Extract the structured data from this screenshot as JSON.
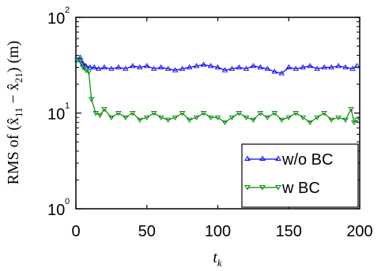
{
  "chart_data": {
    "type": "line",
    "title": "",
    "xlabel": "t_k",
    "ylabel": "RMS of (x̂_11 − x̂_21) (m)",
    "xlim": [
      0,
      200
    ],
    "ylim": [
      1,
      100
    ],
    "y_scale": "log",
    "xticks": [
      0,
      50,
      100,
      150,
      200
    ],
    "yticks": [
      {
        "value": 1,
        "base": "10",
        "exp": "0"
      },
      {
        "value": 10,
        "base": "10",
        "exp": "1"
      },
      {
        "value": 100,
        "base": "10",
        "exp": "2"
      }
    ],
    "grid": false,
    "legend_position": "bottom-right",
    "series": [
      {
        "name": "w/o BC",
        "color": "#0000ff",
        "marker": "triangle-up",
        "x": [
          1,
          3,
          5,
          7,
          10,
          13,
          16,
          20,
          25,
          30,
          35,
          40,
          45,
          50,
          55,
          60,
          65,
          70,
          75,
          80,
          85,
          90,
          95,
          100,
          105,
          110,
          115,
          120,
          125,
          130,
          135,
          140,
          145,
          150,
          155,
          160,
          165,
          170,
          175,
          180,
          185,
          190,
          195,
          198
        ],
        "values": [
          36,
          38,
          33,
          31,
          30,
          30,
          29,
          30,
          29,
          30,
          29,
          31,
          30,
          31,
          29,
          30,
          29,
          28,
          29,
          30,
          31,
          32,
          31,
          30,
          28,
          29,
          30,
          29,
          31,
          30,
          29,
          27,
          26,
          30,
          29,
          30,
          31,
          29,
          30,
          30,
          31,
          30,
          29,
          31
        ]
      },
      {
        "name": "w BC",
        "color": "#008800",
        "marker": "triangle-down",
        "x": [
          1,
          3,
          5,
          7,
          9,
          11,
          14,
          17,
          20,
          25,
          30,
          35,
          40,
          45,
          50,
          55,
          60,
          65,
          70,
          75,
          80,
          85,
          90,
          95,
          100,
          105,
          110,
          115,
          120,
          125,
          130,
          135,
          140,
          145,
          150,
          155,
          160,
          165,
          170,
          175,
          180,
          185,
          190,
          194,
          196,
          198
        ],
        "values": [
          36,
          35,
          30,
          28,
          27,
          14,
          10,
          9.5,
          11,
          9,
          10,
          9,
          10,
          8.5,
          9,
          10,
          9,
          8.5,
          9,
          10,
          8.5,
          9,
          10,
          9,
          9,
          8,
          9,
          10,
          9,
          8.5,
          10,
          9,
          10,
          8.5,
          9,
          10,
          9,
          8,
          9,
          10,
          8.5,
          9,
          8.5,
          11,
          8,
          8.5
        ]
      }
    ]
  }
}
